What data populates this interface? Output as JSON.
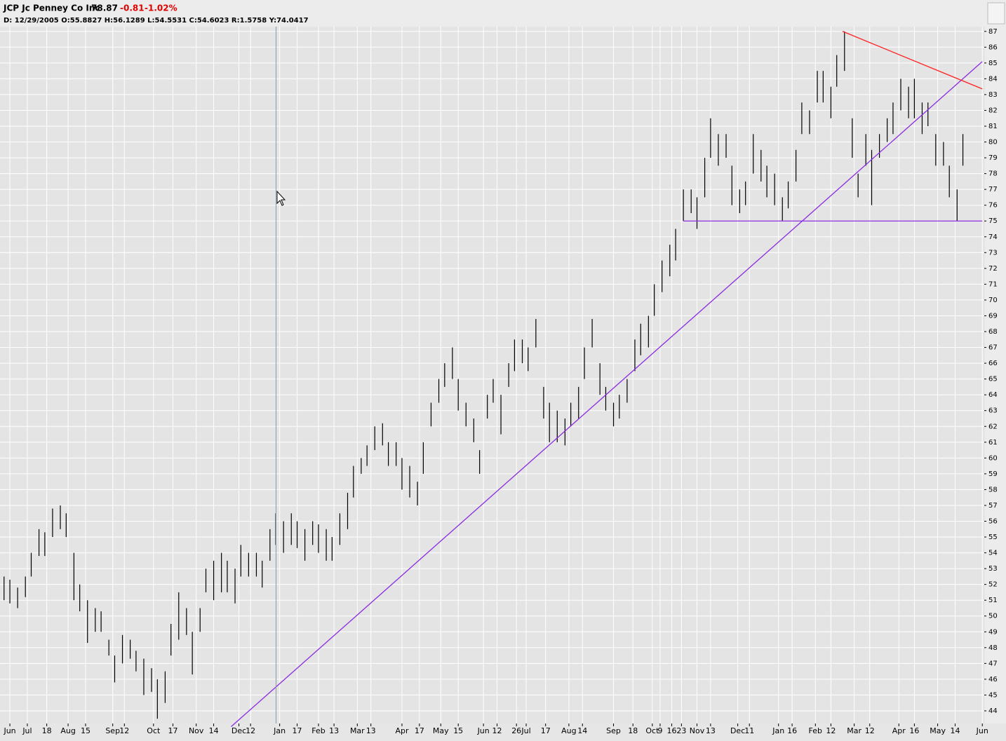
{
  "header": {
    "symbol": "JCP Jc Penney Co Inc",
    "last": "78.87",
    "change": "-0.81",
    "change_pct": "-1.02%",
    "info": "D: 12/29/2005 O:55.8827 H:56.1289 L:54.5531 C:54.6023 R:1.5758 Y:74.0417"
  },
  "chart_data": {
    "type": "ohlc",
    "color": "#000000",
    "grid": true,
    "xlim": [
      0,
      506
    ],
    "ylim": [
      43.2,
      87.3
    ],
    "yticks": [
      44,
      45,
      46,
      47,
      48,
      49,
      50,
      51,
      52,
      53,
      54,
      55,
      56,
      57,
      58,
      59,
      60,
      61,
      62,
      63,
      64,
      65,
      66,
      67,
      68,
      69,
      70,
      71,
      72,
      73,
      74,
      75,
      76,
      77,
      78,
      79,
      80,
      81,
      82,
      83,
      84,
      85,
      86,
      87
    ],
    "xticks": [
      {
        "value": 4,
        "label": "Jun"
      },
      {
        "value": 13,
        "label": "Jul"
      },
      {
        "value": 23,
        "label": "18"
      },
      {
        "value": 34,
        "label": "Aug"
      },
      {
        "value": 43,
        "label": "15"
      },
      {
        "value": 57,
        "label": "Sep"
      },
      {
        "value": 63,
        "label": "12"
      },
      {
        "value": 78,
        "label": "Oct"
      },
      {
        "value": 88,
        "label": "17"
      },
      {
        "value": 100,
        "label": "Nov"
      },
      {
        "value": 109,
        "label": "14"
      },
      {
        "value": 122,
        "label": "Dec"
      },
      {
        "value": 128,
        "label": "12"
      },
      {
        "value": 143,
        "label": "Jan"
      },
      {
        "value": 152,
        "label": "17"
      },
      {
        "value": 163,
        "label": "Feb"
      },
      {
        "value": 171,
        "label": "13"
      },
      {
        "value": 183,
        "label": "Mar"
      },
      {
        "value": 190,
        "label": "13"
      },
      {
        "value": 206,
        "label": "Apr"
      },
      {
        "value": 215,
        "label": "17"
      },
      {
        "value": 226,
        "label": "May"
      },
      {
        "value": 235,
        "label": "15"
      },
      {
        "value": 248,
        "label": "Jun"
      },
      {
        "value": 255,
        "label": "12"
      },
      {
        "value": 265,
        "label": "26"
      },
      {
        "value": 270,
        "label": "Jul"
      },
      {
        "value": 280,
        "label": "17"
      },
      {
        "value": 292,
        "label": "Aug"
      },
      {
        "value": 299,
        "label": "14"
      },
      {
        "value": 315,
        "label": "Sep"
      },
      {
        "value": 325,
        "label": "18"
      },
      {
        "value": 335,
        "label": "Oct"
      },
      {
        "value": 339,
        "label": "9"
      },
      {
        "value": 345,
        "label": "16"
      },
      {
        "value": 350,
        "label": "23"
      },
      {
        "value": 358,
        "label": "Nov"
      },
      {
        "value": 365,
        "label": "13"
      },
      {
        "value": 379,
        "label": "Dec"
      },
      {
        "value": 385,
        "label": "11"
      },
      {
        "value": 400,
        "label": "Jan"
      },
      {
        "value": 407,
        "label": "16"
      },
      {
        "value": 419,
        "label": "Feb"
      },
      {
        "value": 427,
        "label": "12"
      },
      {
        "value": 439,
        "label": "Mar"
      },
      {
        "value": 447,
        "label": "12"
      },
      {
        "value": 462,
        "label": "Apr"
      },
      {
        "value": 470,
        "label": "16"
      },
      {
        "value": 482,
        "label": "May"
      },
      {
        "value": 491,
        "label": "14"
      },
      {
        "value": 505,
        "label": "Jun"
      }
    ],
    "x": [
      1,
      4,
      8,
      12,
      15,
      19,
      22,
      26,
      30,
      33,
      37,
      40,
      44,
      48,
      51,
      55,
      58,
      62,
      66,
      69,
      73,
      77,
      80,
      84,
      87,
      91,
      95,
      98,
      102,
      105,
      109,
      113,
      116,
      120,
      123,
      127,
      131,
      134,
      138,
      141,
      145,
      149,
      152,
      156,
      160,
      163,
      167,
      170,
      174,
      178,
      181,
      185,
      188,
      192,
      196,
      199,
      203,
      206,
      210,
      214,
      217,
      221,
      225,
      228,
      232,
      235,
      239,
      243,
      246,
      250,
      253,
      257,
      261,
      264,
      268,
      271,
      275,
      279,
      282,
      286,
      290,
      293,
      297,
      300,
      304,
      308,
      311,
      315,
      318,
      322,
      326,
      329,
      333,
      336,
      340,
      344,
      347,
      351,
      355,
      358,
      362,
      365,
      369,
      373,
      376,
      380,
      383,
      387,
      391,
      394,
      398,
      402,
      405,
      409,
      412,
      416,
      420,
      423,
      427,
      430,
      434,
      438,
      441,
      445,
      448,
      452,
      456,
      459,
      463,
      467,
      470,
      474,
      477,
      481,
      485,
      488,
      492,
      495
    ],
    "high": [
      52.5,
      52.3,
      51.8,
      52.5,
      54,
      55.5,
      55.3,
      56.8,
      57,
      56.5,
      54,
      52,
      51,
      50.5,
      50.3,
      48.5,
      47.5,
      48.8,
      48.5,
      47.8,
      47.3,
      46.7,
      46,
      46.5,
      49.5,
      51.5,
      50.5,
      49,
      50.5,
      53,
      53.5,
      54,
      53.5,
      53,
      54.5,
      54,
      54,
      53.5,
      55.5,
      56.5,
      56,
      56.5,
      56,
      55.5,
      56,
      55.8,
      55.5,
      55,
      56.5,
      57.8,
      59.5,
      60,
      60.8,
      62,
      62.2,
      61,
      61,
      60,
      59.5,
      58.5,
      61,
      63.5,
      65,
      66,
      67,
      65,
      63.5,
      62.5,
      60.5,
      64,
      65,
      64,
      66,
      67.5,
      67.5,
      67,
      68.8,
      64.5,
      63.5,
      63,
      62.5,
      63.5,
      64.5,
      67,
      68.8,
      66,
      64.5,
      63.5,
      64,
      65,
      67.5,
      68.5,
      69,
      71,
      72.5,
      73.5,
      74.5,
      77,
      77,
      76.5,
      79,
      81.5,
      80.5,
      80.5,
      78.5,
      77,
      77.5,
      80.5,
      79.5,
      78.5,
      78,
      76.5,
      77.5,
      79.5,
      82.5,
      82,
      84.5,
      84.5,
      83.5,
      85.5,
      87,
      81.5,
      78,
      80.5,
      79.5,
      80.5,
      81.5,
      82.5,
      84,
      83.5,
      84,
      82.5,
      82.5,
      80.5,
      80,
      78.5,
      77,
      80.5
    ],
    "low": [
      51,
      50.8,
      50.5,
      51.2,
      52.5,
      53.8,
      53.8,
      55,
      55.5,
      55,
      51,
      50.3,
      48.3,
      49,
      49,
      47.5,
      45.8,
      47,
      47.3,
      46.5,
      45,
      45.2,
      43.5,
      44.5,
      47.5,
      48.5,
      48.8,
      46.3,
      49,
      51.5,
      51,
      51.5,
      51.5,
      50.8,
      52.5,
      52.5,
      52.5,
      51.8,
      53.5,
      54.5,
      54,
      54.5,
      54.3,
      53.5,
      54.5,
      54,
      53.5,
      53.5,
      54.5,
      55.5,
      57.5,
      59,
      59.5,
      60.5,
      60.8,
      59.5,
      59.5,
      58,
      57.5,
      57,
      59,
      62,
      63.5,
      64.5,
      65,
      63,
      62,
      61,
      59,
      62.5,
      63.5,
      61.5,
      64.5,
      65.5,
      66,
      65.5,
      67,
      62.5,
      61,
      61,
      60.8,
      62,
      62.5,
      65,
      67,
      64,
      63,
      62,
      62.5,
      63.5,
      65.5,
      66.5,
      67,
      69,
      70.5,
      71.5,
      72.5,
      75,
      75.5,
      74.5,
      76.5,
      79,
      78.5,
      79,
      76,
      75.5,
      76,
      78,
      77.5,
      76.5,
      76,
      75,
      75.8,
      77.5,
      80.5,
      80.5,
      82.5,
      82.5,
      81.5,
      83.5,
      84.5,
      79,
      76.5,
      78.5,
      76,
      79,
      80,
      80.5,
      82,
      81.5,
      81.5,
      80.5,
      81,
      78.5,
      78.5,
      76.5,
      75,
      78.5
    ],
    "lines": [
      {
        "color": "#8a2be2",
        "x": [
          118,
          505
        ],
        "y": [
          43.0,
          85.09
        ]
      },
      {
        "color": "#ff2020",
        "x": [
          433,
          505
        ],
        "y": [
          87,
          83.36
        ]
      },
      {
        "color": "#8a2be2",
        "x": [
          351,
          505
        ],
        "y": [
          75,
          75
        ]
      }
    ]
  }
}
